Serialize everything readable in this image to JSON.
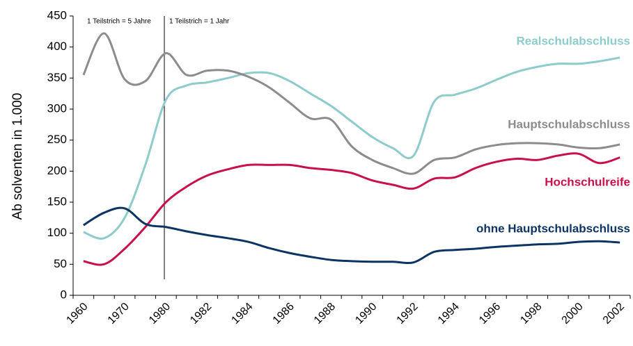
{
  "chart_data": {
    "type": "line",
    "ylabel": "Ab solventen in 1.000",
    "annotations": [
      "1 Teilstrich = 5 Jahre",
      "1 Teilstrich = 1 Jahr"
    ],
    "categories": [
      "1960",
      null,
      "1970",
      null,
      "1980",
      null,
      "1982",
      null,
      "1984",
      null,
      "1986",
      null,
      "1988",
      null,
      "1990",
      null,
      "1992",
      null,
      "1994",
      null,
      "1996",
      null,
      "1998",
      null,
      "2000",
      null,
      "2002"
    ],
    "ylim": [
      0,
      450
    ],
    "yticks": [
      0,
      50,
      100,
      150,
      200,
      250,
      300,
      350,
      400,
      450
    ],
    "series": [
      {
        "name": "Realschulabschluss",
        "color": "#8ecbcb",
        "values": [
          102,
          92,
          125,
          210,
          315,
          338,
          343,
          350,
          358,
          358,
          345,
          325,
          305,
          280,
          255,
          237,
          225,
          312,
          323,
          333,
          347,
          360,
          368,
          373,
          373,
          377,
          383
        ]
      },
      {
        "name": "Hauptschulabschluss",
        "color": "#8c8c8c",
        "values": [
          355,
          422,
          348,
          345,
          390,
          355,
          362,
          362,
          352,
          335,
          310,
          285,
          283,
          240,
          218,
          205,
          196,
          218,
          222,
          235,
          242,
          245,
          245,
          243,
          238,
          237,
          243
        ]
      },
      {
        "name": "Hochschulreife",
        "color": "#c8104a",
        "values": [
          55,
          50,
          75,
          110,
          150,
          175,
          193,
          203,
          210,
          210,
          210,
          205,
          202,
          197,
          185,
          178,
          172,
          188,
          190,
          205,
          215,
          220,
          218,
          225,
          228,
          213,
          222
        ]
      },
      {
        "name": "ohne Hauptschulabschluss",
        "color": "#0c3463",
        "values": [
          113,
          133,
          140,
          115,
          110,
          103,
          97,
          92,
          86,
          76,
          68,
          62,
          57,
          55,
          54,
          54,
          53,
          70,
          73,
          75,
          78,
          80,
          82,
          83,
          86,
          87,
          85
        ]
      }
    ]
  }
}
